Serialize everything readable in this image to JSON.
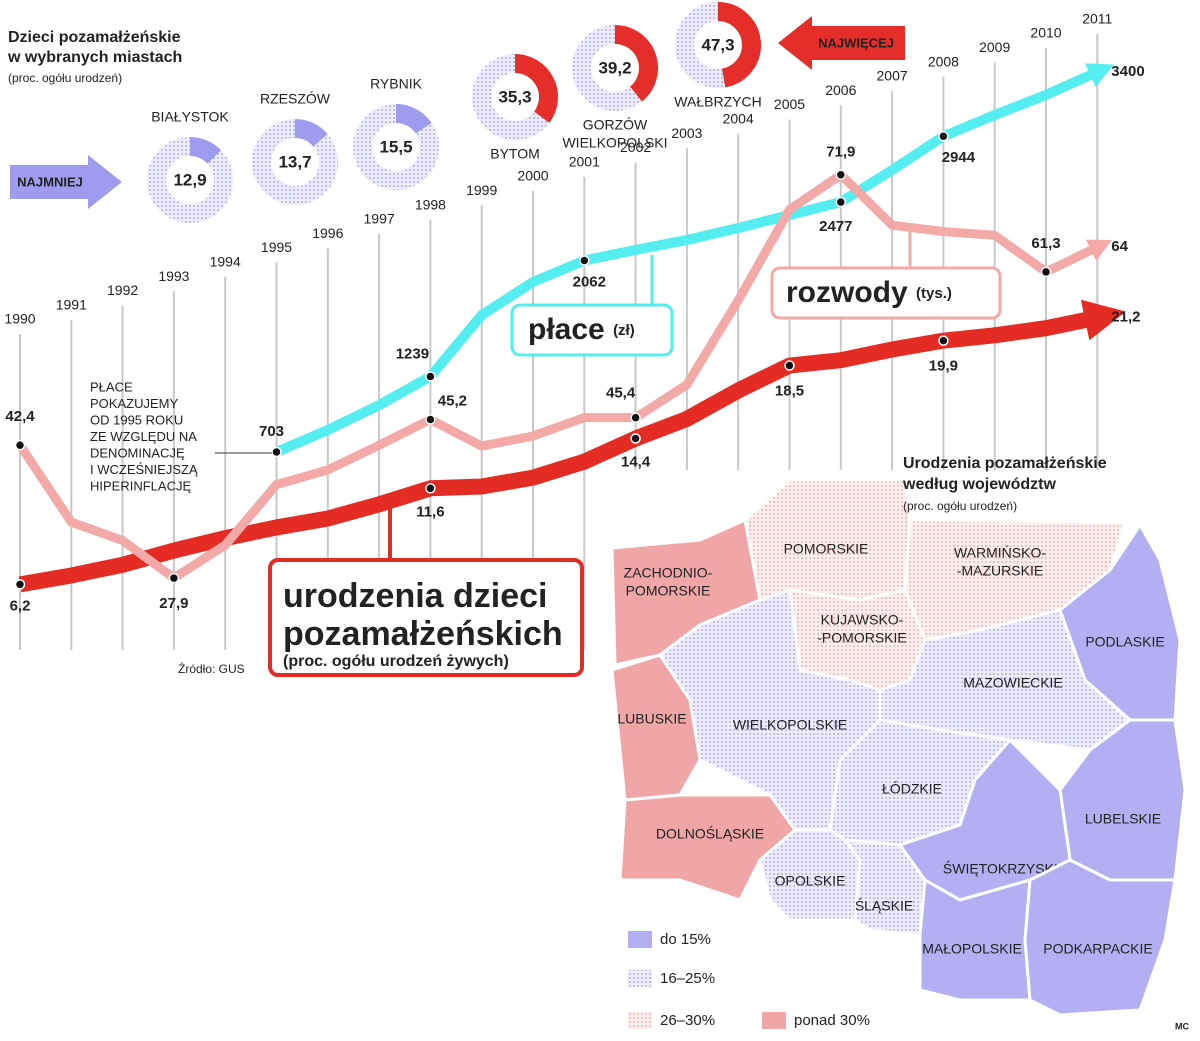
{
  "chart_data": [
    {
      "type": "line",
      "x": [
        1990,
        1991,
        1992,
        1993,
        1994,
        1995,
        1996,
        1997,
        1998,
        1999,
        2000,
        2001,
        2002,
        2003,
        2004,
        2005,
        2006,
        2007,
        2008,
        2009,
        2010,
        2011
      ],
      "annotation": [
        "PŁACE",
        "POKAZUJEMY",
        "OD 1995 ROKU",
        "ZE WZGLĘDU NA",
        "DENOMINACJĘ",
        "I WCZEŚNIEJSZĄ",
        "HIPERINFLACJĘ"
      ],
      "source": "Źródło: GUS",
      "series": [
        {
          "name": [
            "urodzenia dzieci",
            "pozamałżeńskich"
          ],
          "unit": "(proc. ogółu urodzeń żywych)",
          "color": "#e42b24",
          "ylim": [
            -0.3,
            36.8
          ],
          "values": [
            6.2,
            6.7,
            7.3,
            8.1,
            8.8,
            9.4,
            9.9,
            10.7,
            11.6,
            11.7,
            12.2,
            13.1,
            14.4,
            15.5,
            17.1,
            18.5,
            18.8,
            19.4,
            19.9,
            20.2,
            20.6,
            21.2
          ],
          "value_labels": [
            "6,2",
            null,
            null,
            null,
            null,
            null,
            null,
            null,
            "11,6",
            null,
            null,
            null,
            "14,4",
            null,
            null,
            "18,5",
            null,
            null,
            "19,9",
            null,
            null,
            "21,2"
          ]
        },
        {
          "name": [
            "płace"
          ],
          "unit": "(zł)",
          "color": "#55eef0",
          "ylim": [
            -1057,
            3627
          ],
          "values": [
            null,
            null,
            null,
            null,
            null,
            703,
            859,
            1036,
            1239,
            1675,
            1910,
            2062,
            2137,
            2208,
            2293,
            2385,
            2477,
            2704,
            2944,
            3095,
            3237,
            3400
          ]
        },
        {
          "name": [
            "rozwody"
          ],
          "unit": "(tys.)",
          "color": "#f2a9a7",
          "ylim": [
            14.6,
            86.6
          ],
          "values": [
            42.4,
            34.0,
            32.0,
            27.9,
            31.5,
            38.1,
            39.7,
            42.4,
            45.2,
            42.3,
            43.4,
            45.4,
            45.4,
            49.0,
            58.2,
            68.1,
            71.9,
            66.4,
            65.7,
            65.3,
            61.3,
            64
          ],
          "value_labels": [
            "42,4",
            null,
            null,
            "27,9",
            null,
            null,
            null,
            null,
            "45,2",
            null,
            null,
            null,
            "45,4",
            null,
            null,
            null,
            "71,9",
            null,
            null,
            null,
            "61,3",
            null
          ]
        }
      ]
    },
    {
      "type": "donut",
      "title": [
        "Dzieci pozamałżeńskie",
        "w wybranych miastach"
      ],
      "subtitle": "(proc. ogółu urodzeń)",
      "categories": [
        [
          "BIAŁYSTOK"
        ],
        [
          "RZESZÓW"
        ],
        [
          "RYBNIK"
        ],
        [
          "BYTOM"
        ],
        [
          "GORZÓW",
          "WIELKOPOLSKI"
        ],
        [
          "WAŁBRZYCH"
        ]
      ],
      "values": [
        12.9,
        13.7,
        15.5,
        35.3,
        39.2,
        47.3
      ],
      "value_labels": [
        "12,9",
        "13,7",
        "15,5",
        "35,3",
        "39,2",
        "47,3"
      ],
      "colors": [
        "#9f9cf0",
        "#9f9cf0",
        "#9f9cf0",
        "#e52e2a",
        "#e52e2a",
        "#e52e2a"
      ],
      "min_label": "NAJMNIEJ",
      "max_label": "NAJWIĘCEJ"
    }
  ],
  "map": {
    "title": [
      "Urodzenia pozamałżeńskie",
      "według województw"
    ],
    "subtitle": "(proc. ogółu urodzeń)",
    "legend": [
      {
        "label": "do 15%",
        "color": "#b3aff2",
        "pattern": false
      },
      {
        "label": "16–25%",
        "color": "#a9a5ee",
        "pattern": true
      },
      {
        "label": "26–30%",
        "color": "#f0a0a0",
        "pattern": true
      },
      {
        "label": "ponad 30%",
        "color": "#f0a6a6",
        "pattern": false
      }
    ],
    "regions": [
      {
        "name": [
          "ZACHODNIO-",
          "POMORSKIE"
        ],
        "legend": 3
      },
      {
        "name": [
          "POMORSKIE"
        ],
        "legend": 2
      },
      {
        "name": [
          "WARMIŃSKO-",
          "-MAZURSKIE"
        ],
        "legend": 2
      },
      {
        "name": [
          "KUJAWSKO-",
          "-POMORSKIE"
        ],
        "legend": 2
      },
      {
        "name": [
          "PODLASKIE"
        ],
        "legend": 0
      },
      {
        "name": [
          "MAZOWIECKIE"
        ],
        "legend": 1
      },
      {
        "name": [
          "LUBUSKIE"
        ],
        "legend": 3
      },
      {
        "name": [
          "WIELKOPOLSKIE"
        ],
        "legend": 1
      },
      {
        "name": [
          "ŁÓDZKIE"
        ],
        "legend": 1
      },
      {
        "name": [
          "LUBELSKIE"
        ],
        "legend": 0
      },
      {
        "name": [
          "DOLNOŚLĄSKIE"
        ],
        "legend": 3
      },
      {
        "name": [
          "OPOLSKIE"
        ],
        "legend": 1
      },
      {
        "name": [
          "ŚLĄSKIE"
        ],
        "legend": 1
      },
      {
        "name": [
          "ŚWIĘTOKRZYSKIE"
        ],
        "legend": 0
      },
      {
        "name": [
          "MAŁOPOLSKIE"
        ],
        "legend": 0
      },
      {
        "name": [
          "PODKARPACKIE"
        ],
        "legend": 0
      }
    ]
  },
  "credit": "MC"
}
